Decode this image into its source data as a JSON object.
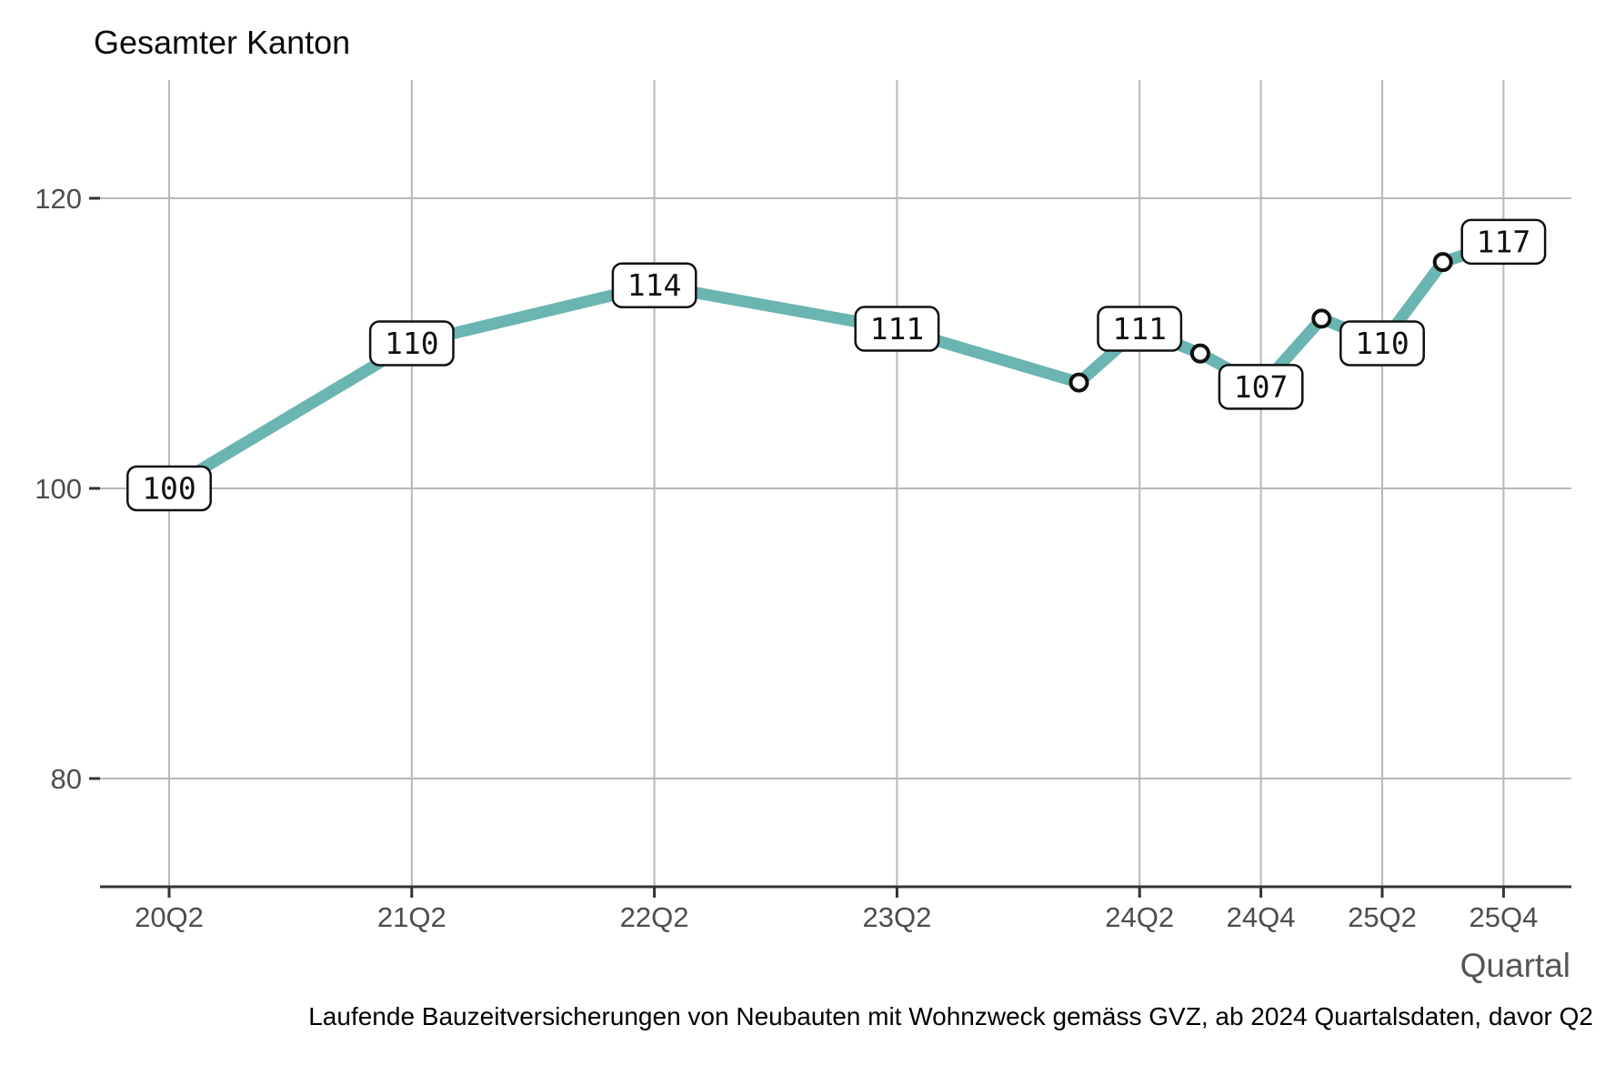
{
  "title": "Gesamter Kanton",
  "x_axis_title": "Quartal",
  "caption": "Laufende Bauzeitversicherungen von Neubauten mit Wohnzweck gemäss GVZ, ab 2024 Quartalsdaten, davor Q2",
  "colors": {
    "line": "#6AB5B1",
    "grid": "#b8b8b8",
    "axis": "#333333",
    "tick_text": "#4d4d4d",
    "axis_title_text": "#555555",
    "title_text": "#0a0a0a",
    "caption_text": "#000000",
    "marker_fill": "#ffffff",
    "marker_stroke": "#111111",
    "label_fill": "#ffffff",
    "label_stroke": "#111111",
    "label_text": "#111111"
  },
  "chart_data": {
    "type": "line",
    "title": "Gesamter Kanton",
    "xlabel": "Quartal",
    "ylabel": "",
    "x_tick_labels": [
      "20Q2",
      "21Q2",
      "22Q2",
      "23Q2",
      "24Q2",
      "24Q4",
      "25Q2",
      "25Q4"
    ],
    "y_ticks": [
      80,
      100,
      120
    ],
    "ylim": [
      72,
      128
    ],
    "grid": true,
    "legend": "none",
    "series": [
      {
        "name": "Gesamter Kanton",
        "points": [
          {
            "quarter": "20Q2",
            "value": 100,
            "label": "100"
          },
          {
            "quarter": "21Q2",
            "value": 110,
            "label": "110"
          },
          {
            "quarter": "22Q2",
            "value": 114,
            "label": "114"
          },
          {
            "quarter": "23Q2",
            "value": 111,
            "label": "111"
          },
          {
            "quarter": "24Q1",
            "value": 107.3,
            "label": null
          },
          {
            "quarter": "24Q2",
            "value": 111,
            "label": "111"
          },
          {
            "quarter": "24Q3",
            "value": 109.3,
            "label": null
          },
          {
            "quarter": "24Q4",
            "value": 107,
            "label": "107"
          },
          {
            "quarter": "25Q1",
            "value": 111.7,
            "label": null
          },
          {
            "quarter": "25Q2",
            "value": 110,
            "label": "110"
          },
          {
            "quarter": "25Q3",
            "value": 115.6,
            "label": null
          },
          {
            "quarter": "25Q4",
            "value": 117,
            "label": "117"
          }
        ]
      }
    ]
  }
}
